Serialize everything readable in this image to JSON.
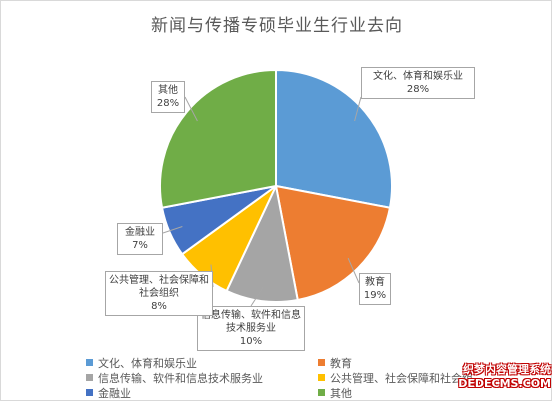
{
  "chart_data": {
    "type": "pie",
    "title": "新闻与传播专硕毕业生行业去向",
    "slices": [
      {
        "label": "文化、体育和娱乐业",
        "pct_label": "28%",
        "value": 28,
        "color": "#5b9bd5"
      },
      {
        "label": "教育",
        "pct_label": "19%",
        "value": 19,
        "color": "#ed7d31"
      },
      {
        "label": "信息传输、软件和信息技术服务业",
        "pct_label": "10%",
        "value": 10,
        "color": "#a5a5a5"
      },
      {
        "label": "公共管理、社会保障和社会组织",
        "pct_label": "8%",
        "value": 8,
        "color": "#ffc000"
      },
      {
        "label": "金融业",
        "pct_label": "7%",
        "value": 7,
        "color": "#4472c4"
      },
      {
        "label": "其他",
        "pct_label": "28%",
        "value": 28,
        "color": "#70ad47"
      }
    ],
    "callouts": {
      "slice0": "文化、体育和娱乐业",
      "slice1": "教育",
      "slice2": "信息传输、软件和信息技术服务业",
      "slice3": "公共管理、社会保障和社会组织",
      "slice4": "金融业",
      "slice5": "其他"
    },
    "legend": {
      "position": "bottom",
      "items": [
        "文化、体育和娱乐业",
        "教育",
        "信息传输、软件和信息技术服务业",
        "公共管理、社会保障和社会组",
        "金融业",
        "其他"
      ]
    }
  },
  "watermark": {
    "line1": "织梦内容管理系统",
    "line2": "DEDECMS.COM"
  }
}
